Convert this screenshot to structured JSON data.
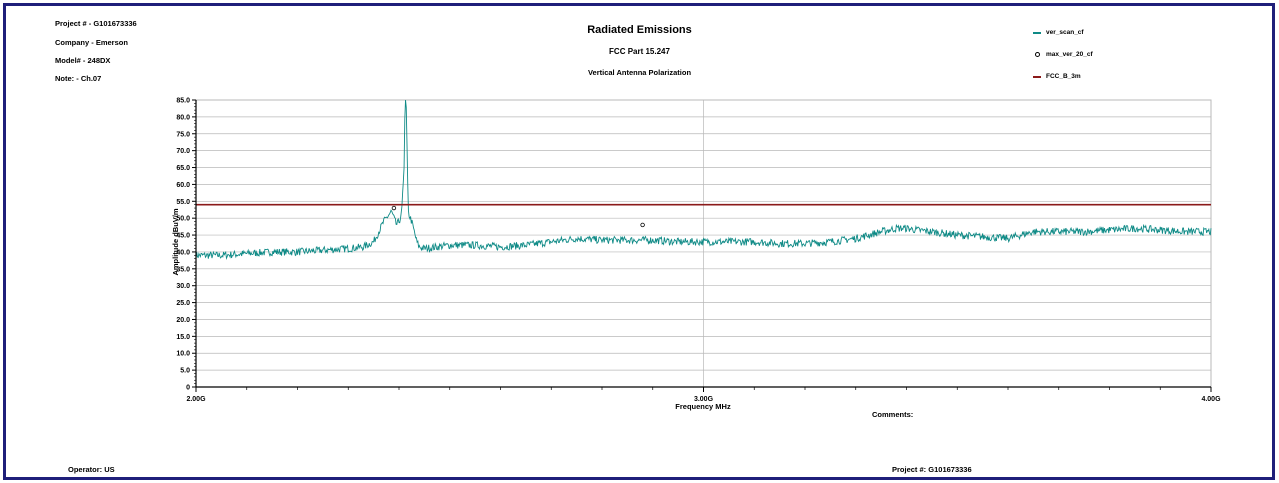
{
  "header": {
    "project": "Project # - G101673336",
    "company": "Company - Emerson",
    "model": "Model# - 248DX",
    "note": "Note: - Ch.07"
  },
  "footer": {
    "operator": "Operator: US",
    "project": "Project #: G101673336",
    "comments": "Comments:"
  },
  "colors": {
    "frame": "#1f1f7a",
    "scan": "#0e8a86",
    "limit": "#8b1a1a",
    "grid": "#b8b8b8"
  },
  "chart_data": {
    "type": "line",
    "title": "Radiated Emissions",
    "subtitle": "FCC Part 15.247",
    "subtitle2": "Vertical Antenna Polarization",
    "xlabel": "Frequency MHz",
    "ylabel": "Amplitude dBuV/m",
    "xlim": [
      2000,
      4000
    ],
    "ylim": [
      0,
      85
    ],
    "x_ticks": [
      2000,
      3000,
      4000
    ],
    "x_tick_labels": [
      "2.00G",
      "3.00G",
      "4.00G"
    ],
    "y_ticks": [
      0,
      5,
      10,
      15,
      20,
      25,
      30,
      35,
      40,
      45,
      50,
      55,
      60,
      65,
      70,
      75,
      80,
      85
    ],
    "y_tick_labels": [
      "0",
      "5.0",
      "10.0",
      "15.0",
      "20.0",
      "25.0",
      "30.0",
      "35.0",
      "40.0",
      "45.0",
      "50.0",
      "55.0",
      "60.0",
      "65.0",
      "70.0",
      "75.0",
      "80.0",
      "85.0"
    ],
    "grid": true,
    "legend_position": "top-right",
    "series": [
      {
        "name": "ver_scan_cf",
        "style": "line",
        "color": "#0e8a86",
        "x": [
          2000,
          2050,
          2100,
          2150,
          2200,
          2250,
          2300,
          2330,
          2350,
          2360,
          2370,
          2380,
          2385,
          2390,
          2395,
          2400,
          2405,
          2410,
          2412,
          2414,
          2416,
          2418,
          2420,
          2425,
          2430,
          2435,
          2440,
          2450,
          2475,
          2500,
          2550,
          2600,
          2650,
          2700,
          2750,
          2800,
          2850,
          2900,
          2950,
          3000,
          3050,
          3100,
          3150,
          3200,
          3250,
          3300,
          3350,
          3380,
          3400,
          3420,
          3450,
          3500,
          3550,
          3600,
          3650,
          3700,
          3750,
          3800,
          3850,
          3900,
          3950,
          4000
        ],
        "y": [
          39,
          39,
          39.5,
          40,
          40,
          40.5,
          41,
          41.5,
          43,
          46,
          49,
          51,
          52,
          50,
          48,
          49,
          51,
          65,
          85,
          85,
          70,
          52,
          51,
          49,
          46,
          43,
          41.5,
          41,
          41.5,
          42,
          42,
          41.5,
          42,
          43,
          44,
          43.5,
          43.5,
          43.5,
          43,
          43,
          43,
          43,
          42.5,
          42.5,
          43,
          44,
          46,
          47,
          47,
          46.5,
          46,
          45,
          44.5,
          44,
          46,
          46,
          46,
          46.5,
          47,
          46.5,
          46,
          46
        ]
      },
      {
        "name": "max_ver_20_cf",
        "style": "marker",
        "color": "#000000",
        "points": [
          [
            2390,
            53
          ],
          [
            2880,
            48
          ]
        ]
      },
      {
        "name": "FCC_B_3m",
        "style": "line",
        "color": "#8b1a1a",
        "x": [
          2000,
          4000
        ],
        "y": [
          54,
          54
        ]
      }
    ]
  }
}
